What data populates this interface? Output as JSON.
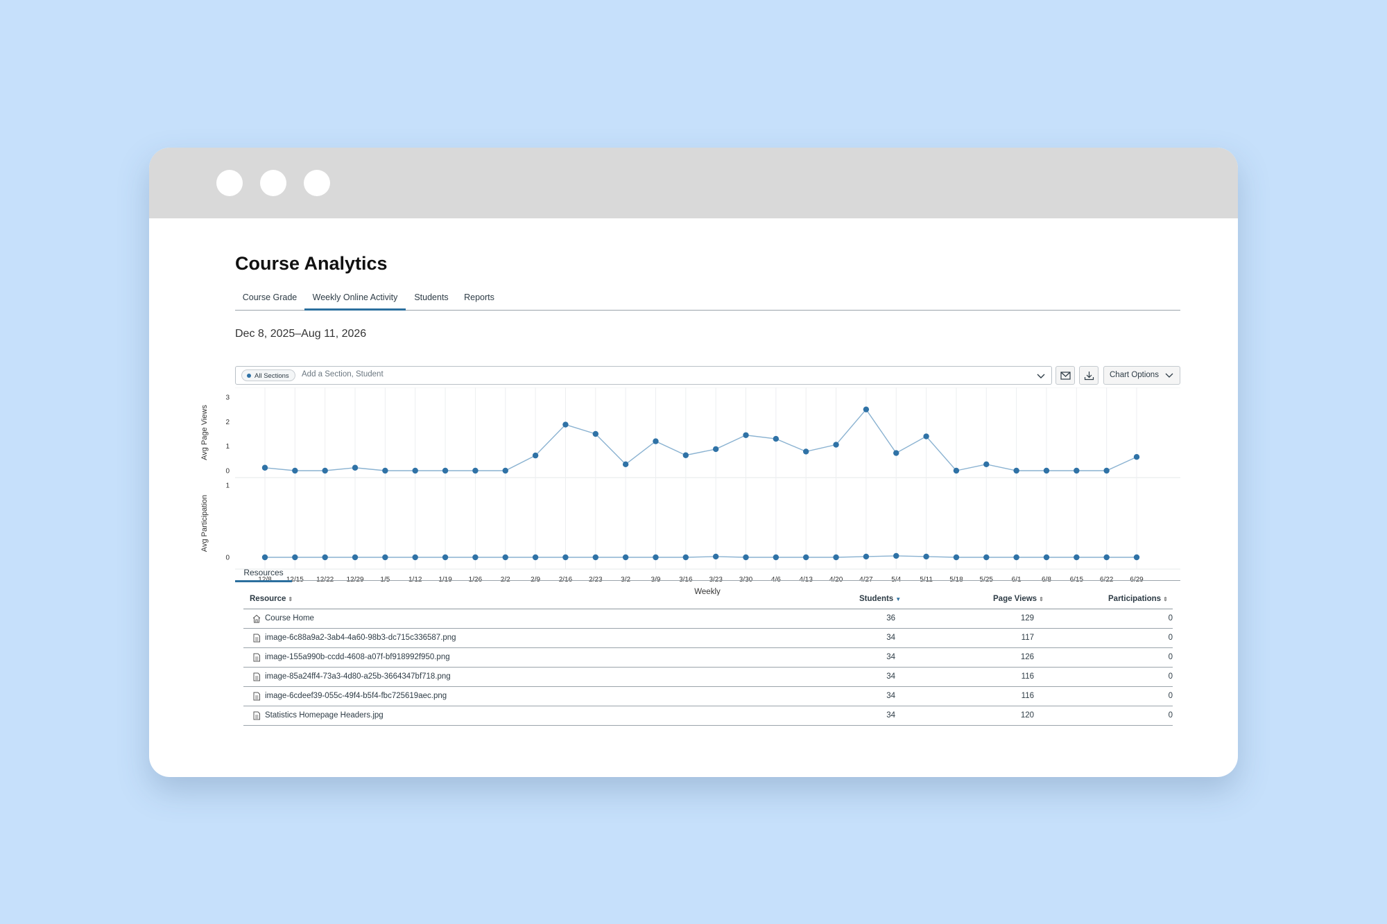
{
  "page": {
    "title": "Course Analytics",
    "date_range": "Dec 8, 2025–Aug 11, 2026"
  },
  "tabs": [
    {
      "label": "Course Grade",
      "active": false
    },
    {
      "label": "Weekly Online Activity",
      "active": true
    },
    {
      "label": "Students",
      "active": false
    },
    {
      "label": "Reports",
      "active": false
    }
  ],
  "filter": {
    "chip_label": "All Sections",
    "placeholder": "Add a Section, Student"
  },
  "toolbar": {
    "message_icon": "envelope-icon",
    "download_icon": "download-icon",
    "chart_options_label": "Chart Options"
  },
  "chart_data": {
    "type": "line",
    "x": [
      "12/8",
      "12/15",
      "12/22",
      "12/29",
      "1/5",
      "1/12",
      "1/19",
      "1/26",
      "2/2",
      "2/9",
      "2/16",
      "2/23",
      "3/2",
      "3/9",
      "3/16",
      "3/23",
      "3/30",
      "4/6",
      "4/13",
      "4/20",
      "4/27",
      "5/4",
      "5/11",
      "5/18",
      "5/25",
      "6/1",
      "6/8",
      "6/15",
      "6/22",
      "6/29"
    ],
    "xlabel": "Weekly",
    "line_color": "#2f72a6",
    "panels": [
      {
        "ylabel": "Avg Page Views",
        "yticks": [
          "0",
          "1",
          "2",
          "3"
        ],
        "ylim": [
          0,
          3
        ],
        "values": [
          0.12,
          0.0,
          0.0,
          0.12,
          0.0,
          0.0,
          0.0,
          0.0,
          0.0,
          0.62,
          1.88,
          1.5,
          0.26,
          1.2,
          0.63,
          0.88,
          1.45,
          1.3,
          0.78,
          1.06,
          2.5,
          0.72,
          1.4,
          0.0,
          0.26,
          0.0,
          0.0,
          0.0,
          0.0,
          0.56
        ]
      },
      {
        "ylabel": "Avg Participation",
        "yticks": [
          "0",
          "1"
        ],
        "ylim": [
          0,
          1
        ],
        "values": [
          0,
          0,
          0,
          0,
          0,
          0,
          0,
          0,
          0,
          0,
          0,
          0,
          0,
          0,
          0,
          0.01,
          0,
          0,
          0,
          0,
          0.01,
          0.02,
          0.01,
          0,
          0,
          0,
          0,
          0,
          0,
          0
        ]
      }
    ],
    "grid": true
  },
  "resources": {
    "tab_label": "Resources",
    "columns": [
      {
        "label": "Resource",
        "sorted": false
      },
      {
        "label": "Students",
        "sorted": true
      },
      {
        "label": "Page Views",
        "sorted": false
      },
      {
        "label": "Participations",
        "sorted": false
      }
    ],
    "rows": [
      {
        "icon": "home-icon",
        "name": "Course Home",
        "students": "36",
        "page_views": "129",
        "participations": "0"
      },
      {
        "icon": "document-icon",
        "name": "image-6c88a9a2-3ab4-4a60-98b3-dc715c336587.png",
        "students": "34",
        "page_views": "117",
        "participations": "0"
      },
      {
        "icon": "document-icon",
        "name": "image-155a990b-ccdd-4608-a07f-bf918992f950.png",
        "students": "34",
        "page_views": "126",
        "participations": "0"
      },
      {
        "icon": "document-icon",
        "name": "image-85a24ff4-73a3-4d80-a25b-3664347bf718.png",
        "students": "34",
        "page_views": "116",
        "participations": "0"
      },
      {
        "icon": "document-icon",
        "name": "image-6cdeef39-055c-49f4-b5f4-fbc725619aec.png",
        "students": "34",
        "page_views": "116",
        "participations": "0"
      },
      {
        "icon": "document-icon",
        "name": "Statistics Homepage Headers.jpg",
        "students": "34",
        "page_views": "120",
        "participations": "0"
      }
    ]
  }
}
